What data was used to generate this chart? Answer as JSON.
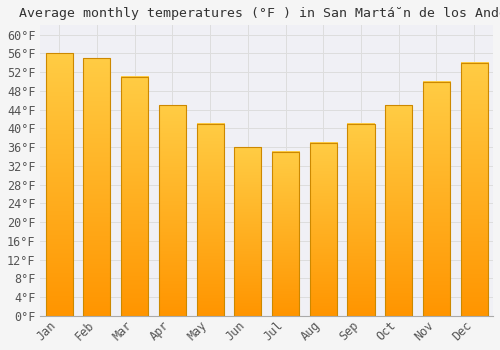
{
  "title": "Average monthly temperatures (°F ) in San Martá̆n de los Andes",
  "months": [
    "Jan",
    "Feb",
    "Mar",
    "Apr",
    "May",
    "Jun",
    "Jul",
    "Aug",
    "Sep",
    "Oct",
    "Nov",
    "Dec"
  ],
  "values": [
    56,
    55,
    51,
    45,
    41,
    36,
    35,
    37,
    41,
    45,
    50,
    54
  ],
  "bar_color_top": "#FFCC44",
  "bar_color_bottom": "#FF9500",
  "bar_edge_color": "#CC8800",
  "background_color": "#f5f5f5",
  "plot_bg_color": "#f0f0f5",
  "grid_color": "#dddddd",
  "ylim_max": 62,
  "ytick_step": 4,
  "title_fontsize": 9.5,
  "tick_fontsize": 8.5,
  "font_family": "monospace",
  "text_color": "#555555"
}
